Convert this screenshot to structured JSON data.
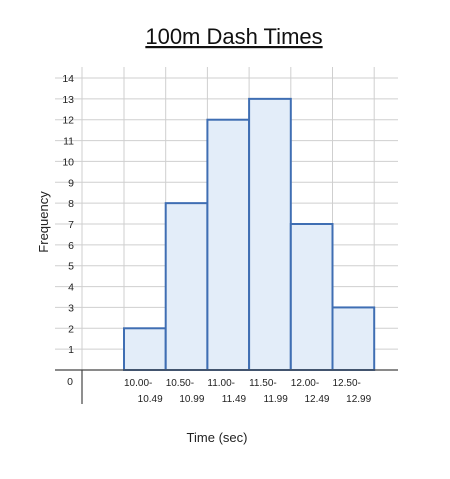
{
  "chart_data": {
    "type": "bar",
    "title": "100m Dash Times",
    "xlabel": "Time (sec)",
    "ylabel": "Frequency",
    "categories": [
      [
        "10.00-",
        "10.49"
      ],
      [
        "10.50-",
        "10.99"
      ],
      [
        "11.00-",
        "11.49"
      ],
      [
        "11.50-",
        "11.99"
      ],
      [
        "12.00-",
        "12.49"
      ],
      [
        "12.50-",
        "12.99"
      ]
    ],
    "values": [
      2,
      8,
      12,
      13,
      7,
      3
    ],
    "ylim": [
      0,
      14
    ],
    "yticks": [
      "1",
      "2",
      "3",
      "4",
      "5",
      "6",
      "7",
      "8",
      "9",
      "10",
      "11",
      "12",
      "13",
      "14"
    ],
    "zero_label": "0",
    "grid": true,
    "colors": {
      "bar_fill": "#e3edf9",
      "bar_stroke": "#3f6eb3"
    }
  }
}
